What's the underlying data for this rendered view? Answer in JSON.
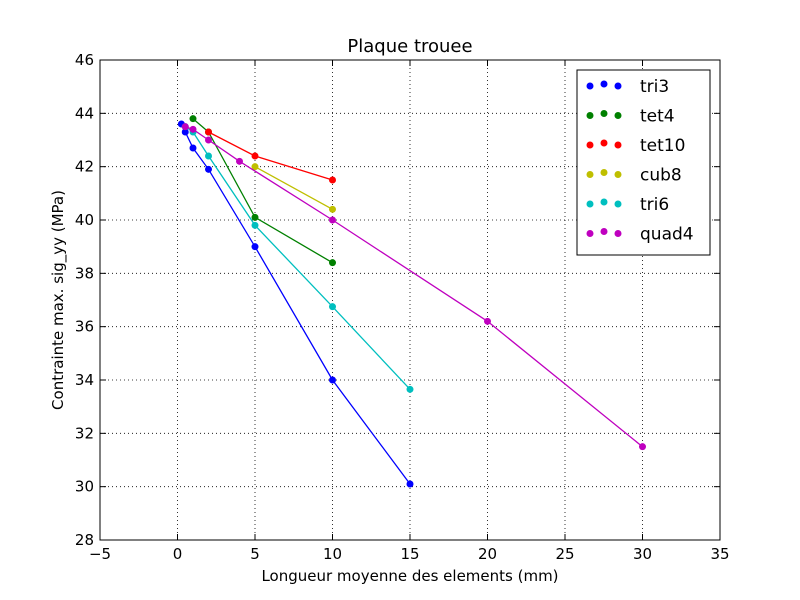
{
  "chart_data": {
    "type": "line",
    "title": "Plaque trouee",
    "xlabel": "Longueur moyenne des elements (mm)",
    "ylabel": "Contrainte max. sig_yy (MPa)",
    "xlim": [
      -5,
      35
    ],
    "ylim": [
      28,
      46
    ],
    "xticks": [
      -5,
      0,
      5,
      10,
      15,
      20,
      25,
      30,
      35
    ],
    "yticks": [
      28,
      30,
      32,
      34,
      36,
      38,
      40,
      42,
      44,
      46
    ],
    "xtick_labels": [
      "−5",
      "0",
      "5",
      "10",
      "15",
      "20",
      "25",
      "30",
      "35"
    ],
    "ytick_labels": [
      "28",
      "30",
      "32",
      "34",
      "36",
      "38",
      "40",
      "42",
      "44",
      "46"
    ],
    "grid": true,
    "legend_position": "top-right",
    "series": [
      {
        "name": "tri3",
        "color": "#0000ff",
        "x": [
          0.25,
          0.5,
          1,
          2,
          5,
          10,
          15
        ],
        "y": [
          43.6,
          43.3,
          42.7,
          41.9,
          39.0,
          34.0,
          30.1
        ]
      },
      {
        "name": "tet4",
        "color": "#008000",
        "x": [
          1,
          2,
          5,
          10
        ],
        "y": [
          43.8,
          43.3,
          40.1,
          38.4
        ]
      },
      {
        "name": "tet10",
        "color": "#ff0000",
        "x": [
          2,
          5,
          10
        ],
        "y": [
          43.3,
          42.4,
          41.5
        ]
      },
      {
        "name": "cub8",
        "color": "#bfbf00",
        "x": [
          5,
          10
        ],
        "y": [
          42.0,
          40.4
        ]
      },
      {
        "name": "tri6",
        "color": "#00bfbf",
        "x": [
          0.5,
          1,
          2,
          5,
          10,
          15
        ],
        "y": [
          43.5,
          43.3,
          42.4,
          39.8,
          36.75,
          33.65
        ]
      },
      {
        "name": "quad4",
        "color": "#bf00bf",
        "x": [
          0.5,
          1,
          2,
          4,
          10,
          20,
          30
        ],
        "y": [
          43.5,
          43.4,
          43.0,
          42.2,
          40.0,
          36.2,
          31.5
        ]
      }
    ]
  }
}
